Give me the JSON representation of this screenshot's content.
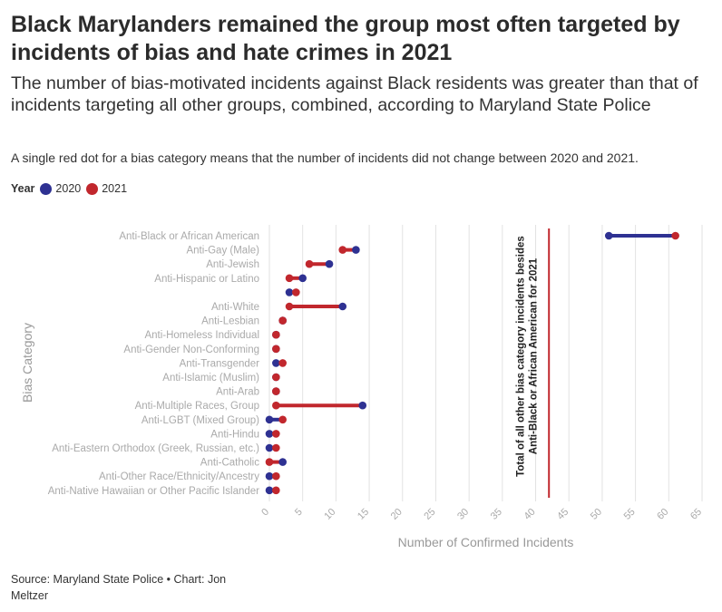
{
  "title": "Black Marylanders remained the group most often targeted by incidents of bias and hate crimes in 2021",
  "subtitle": "The number of bias-motivated incidents against Black residents was greater than that of incidents targeting all other groups, combined, according to Maryland State Police",
  "note": "A single red dot for a bias category means that the number of incidents did not change between 2020 and 2021.",
  "legend": {
    "title": "Year",
    "items": [
      {
        "label": "2020",
        "color": "#2e3192"
      },
      {
        "label": "2021",
        "color": "#c1272d"
      }
    ]
  },
  "source": "Source: Maryland State Police • Chart: Jon Meltzer",
  "chart_data": {
    "type": "dumbbell",
    "xlabel": "Number of Confirmed Incidents",
    "ylabel": "Bias Category",
    "xlim": [
      0,
      65
    ],
    "xticks": [
      0,
      5,
      10,
      15,
      20,
      25,
      30,
      35,
      40,
      45,
      50,
      55,
      60,
      65
    ],
    "grid": true,
    "legend_position": "top-left",
    "colors": {
      "y2020": "#2e3192",
      "y2021": "#c1272d"
    },
    "categories": [
      "Anti-Black or African American",
      "Anti-Gay (Male)",
      "Anti-Jewish",
      "Anti-Hispanic or Latino",
      "",
      "Anti-White",
      "Anti-Lesbian",
      "Anti-Homeless Individual",
      "Anti-Gender Non-Conforming",
      "Anti-Transgender",
      "Anti-Islamic (Muslim)",
      "Anti-Arab",
      "Anti-Multiple Races, Group",
      "Anti-LGBT (Mixed Group)",
      "Anti-Hindu",
      "Anti-Eastern Orthodox (Greek, Russian, etc.)",
      "Anti-Catholic",
      "Anti-Other Race/Ethnicity/Ancestry",
      "Anti-Native Hawaiian or Other Pacific Islander"
    ],
    "series": [
      {
        "name": "2020",
        "values": [
          51,
          13,
          9,
          5,
          3,
          11,
          2,
          1,
          1,
          1,
          1,
          1,
          14,
          0,
          0,
          0,
          2,
          0,
          0
        ]
      },
      {
        "name": "2021",
        "values": [
          61,
          11,
          6,
          3,
          4,
          3,
          2,
          1,
          1,
          2,
          1,
          1,
          1,
          2,
          1,
          1,
          0,
          1,
          1
        ]
      }
    ],
    "reference_line": {
      "x": 42,
      "label": "Total of all other bias category incidents besides Anti-Black or African American for 2021"
    }
  }
}
